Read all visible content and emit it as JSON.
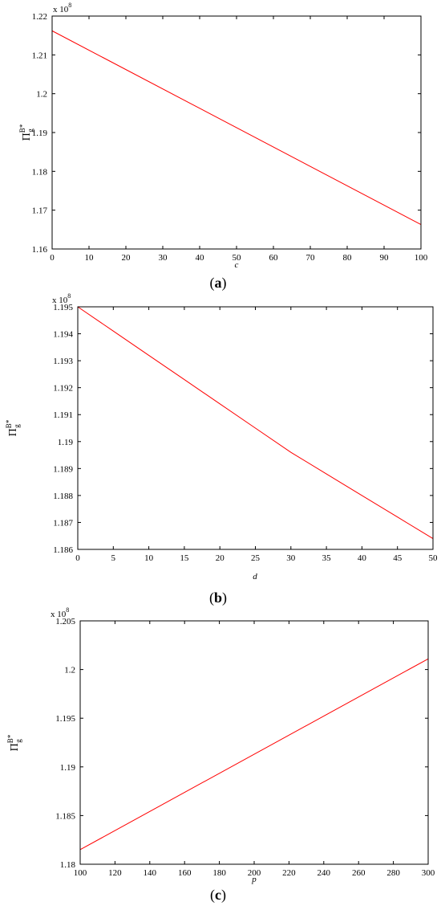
{
  "chart_data": [
    {
      "type": "line",
      "xlabel": "c",
      "ylabel": "Π",
      "ylabel_sup": "B*",
      "ylabel_sub": "g",
      "y_multiplier_text": "x 10",
      "y_multiplier_exp": "8",
      "caption_open": "(",
      "caption_letter": "a",
      "caption_close": ")",
      "xlim": [
        0,
        100
      ],
      "ylim": [
        1.16,
        1.22
      ],
      "xticks": [
        0,
        10,
        20,
        30,
        40,
        50,
        60,
        70,
        80,
        90,
        100
      ],
      "xtick_labels": [
        "0",
        "10",
        "20",
        "30",
        "40",
        "50",
        "60",
        "70",
        "80",
        "90",
        "100"
      ],
      "yticks": [
        1.16,
        1.17,
        1.18,
        1.19,
        1.2,
        1.21,
        1.22
      ],
      "ytick_labels": [
        "1.16",
        "1.17",
        "1.18",
        "1.19",
        "1.2",
        "1.21",
        "1.22"
      ],
      "series": [
        {
          "color": "#ff0000",
          "x": [
            0,
            100
          ],
          "y": [
            1.2162,
            1.1663
          ]
        }
      ]
    },
    {
      "type": "line",
      "xlabel": "d",
      "ylabel": "Π",
      "ylabel_sup": "B*",
      "ylabel_sub": "g",
      "y_multiplier_text": "x 10",
      "y_multiplier_exp": "8",
      "caption_open": "(",
      "caption_letter": "b",
      "caption_close": ")",
      "xlim": [
        0,
        50
      ],
      "ylim": [
        1.186,
        1.195
      ],
      "xticks": [
        0,
        5,
        10,
        15,
        20,
        25,
        30,
        35,
        40,
        45,
        50
      ],
      "xtick_labels": [
        "0",
        "5",
        "10",
        "15",
        "20",
        "25",
        "30",
        "35",
        "40",
        "45",
        "50"
      ],
      "yticks": [
        1.186,
        1.187,
        1.188,
        1.189,
        1.19,
        1.191,
        1.192,
        1.193,
        1.194,
        1.195
      ],
      "ytick_labels": [
        "1.186",
        "1.187",
        "1.188",
        "1.189",
        "1.19",
        "1.191",
        "1.192",
        "1.193",
        "1.194",
        "1.195"
      ],
      "series": [
        {
          "color": "#ff0000",
          "x": [
            0,
            5,
            10,
            15,
            20,
            25,
            30,
            35,
            40,
            45,
            50
          ],
          "y": [
            1.195,
            1.1941,
            1.1932,
            1.1923,
            1.1914,
            1.1905,
            1.1896,
            1.1888,
            1.188,
            1.1872,
            1.1864
          ]
        }
      ]
    },
    {
      "type": "line",
      "xlabel": "p",
      "ylabel": "Π",
      "ylabel_sup": "B*",
      "ylabel_sub": "g",
      "y_multiplier_text": "x 10",
      "y_multiplier_exp": "8",
      "caption_open": "(",
      "caption_letter": "c",
      "caption_close": ")",
      "xlim": [
        100,
        300
      ],
      "ylim": [
        1.18,
        1.205
      ],
      "xticks": [
        100,
        120,
        140,
        160,
        180,
        200,
        220,
        240,
        260,
        280,
        300
      ],
      "xtick_labels": [
        "100",
        "120",
        "140",
        "160",
        "180",
        "200",
        "220",
        "240",
        "260",
        "280",
        "300"
      ],
      "yticks": [
        1.18,
        1.185,
        1.19,
        1.195,
        1.2,
        1.205
      ],
      "ytick_labels": [
        "1.18",
        "1.185",
        "1.19",
        "1.195",
        "1.2",
        "1.205"
      ],
      "series": [
        {
          "color": "#ff0000",
          "x": [
            100,
            300
          ],
          "y": [
            1.1815,
            1.2011
          ]
        }
      ]
    }
  ]
}
